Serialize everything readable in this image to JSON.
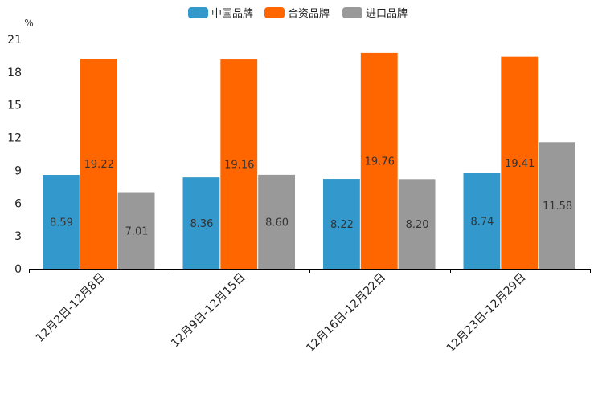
{
  "chart_data": {
    "type": "bar",
    "title": "",
    "xlabel": "",
    "ylabel": "%",
    "ylim": [
      0,
      21
    ],
    "yticks": [
      0,
      3,
      6,
      9,
      12,
      15,
      18,
      21
    ],
    "grid": false,
    "legend_position": "top-center",
    "categories": [
      "12月2日-12月8日",
      "12月9日-12月15日",
      "12月16日-12月22日",
      "12月23日-12月29日"
    ],
    "series": [
      {
        "name": "中国品牌",
        "color": "#3399cc",
        "values": [
          8.59,
          8.36,
          8.22,
          8.74
        ]
      },
      {
        "name": "合资品牌",
        "color": "#ff6600",
        "values": [
          19.22,
          19.16,
          19.76,
          19.41
        ]
      },
      {
        "name": "进口品牌",
        "color": "#999999",
        "values": [
          7.01,
          8.6,
          8.2,
          11.58
        ]
      }
    ]
  }
}
